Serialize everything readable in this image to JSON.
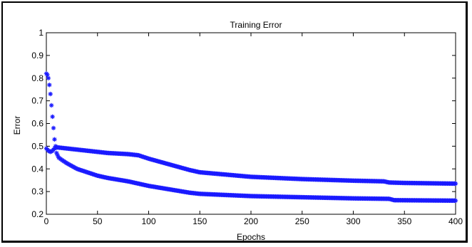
{
  "chart_data": {
    "type": "scatter",
    "title": "Training Error",
    "xlabel": "Epochs",
    "ylabel": "Error",
    "xlim": [
      0,
      400
    ],
    "ylim": [
      0.2,
      1
    ],
    "xticks": [
      0,
      50,
      100,
      150,
      200,
      250,
      300,
      350,
      400
    ],
    "yticks": [
      0.2,
      0.3,
      0.4,
      0.5,
      0.6,
      0.7,
      0.8,
      0.9,
      1
    ],
    "xtick_labels": [
      "0",
      "50",
      "100",
      "150",
      "200",
      "250",
      "300",
      "350",
      "400"
    ],
    "ytick_labels": [
      "0.2",
      "0.3",
      "0.4",
      "0.5",
      "0.6",
      "0.7",
      "0.8",
      "0.9",
      "1"
    ],
    "grid": false,
    "legend": "none",
    "marker": "asterisk",
    "color": "#1a1aff",
    "series": [
      {
        "x": [
          0,
          2,
          4,
          6,
          8,
          10,
          20,
          40,
          60,
          80,
          90,
          100,
          120,
          140,
          150,
          175,
          200,
          250,
          300,
          330,
          335,
          350,
          400
        ],
        "y": [
          0.49,
          0.48,
          0.475,
          0.48,
          0.49,
          0.495,
          0.49,
          0.48,
          0.47,
          0.465,
          0.46,
          0.445,
          0.42,
          0.395,
          0.385,
          0.375,
          0.365,
          0.355,
          0.348,
          0.345,
          0.34,
          0.338,
          0.335
        ]
      },
      {
        "x": [
          0,
          1,
          2,
          3,
          4,
          5,
          6,
          7,
          8,
          9,
          10,
          12,
          15,
          20,
          30,
          40,
          50,
          60,
          80,
          100,
          120,
          140,
          150,
          200,
          250,
          300,
          335,
          340,
          400
        ],
        "y": [
          0.82,
          0.815,
          0.8,
          0.77,
          0.73,
          0.68,
          0.63,
          0.58,
          0.53,
          0.5,
          0.47,
          0.45,
          0.44,
          0.425,
          0.4,
          0.385,
          0.37,
          0.36,
          0.345,
          0.325,
          0.31,
          0.295,
          0.29,
          0.28,
          0.275,
          0.27,
          0.268,
          0.262,
          0.26
        ]
      }
    ]
  }
}
